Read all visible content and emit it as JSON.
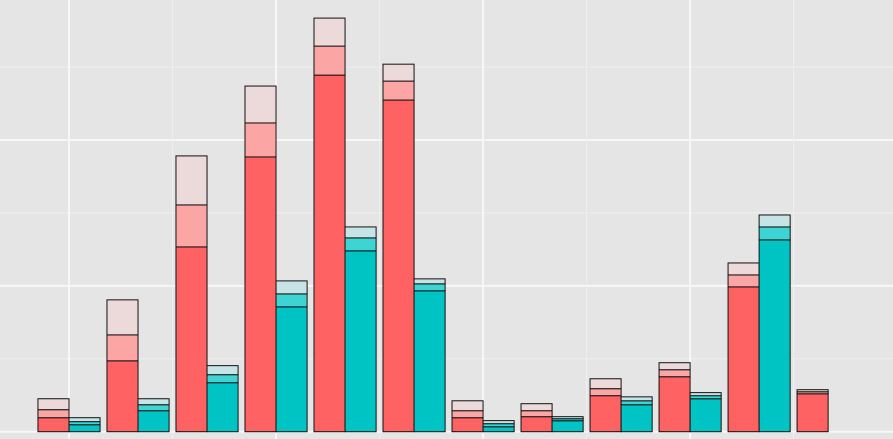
{
  "chart_data": {
    "type": "bar",
    "stacked": true,
    "grid": true,
    "x": [
      1,
      2,
      3,
      4,
      5,
      6,
      7,
      8,
      9,
      10,
      11,
      12
    ],
    "bar_width": 0.45,
    "xlim": [
      0,
      12.94
    ],
    "xticks": [
      1,
      2.5,
      4,
      5.5,
      7,
      8.5,
      10,
      11.5
    ],
    "ylim": [
      -0.5,
      29.6
    ],
    "yticks": [
      0,
      5,
      10,
      15,
      20,
      25
    ],
    "groups": [
      {
        "series": [
          {
            "color": "#fe6262",
            "values": [
              0.96,
              4.86,
              12.67,
              18.84,
              24.45,
              22.74,
              0.96,
              1.03,
              2.47,
              3.77,
              9.93,
              2.6
            ]
          },
          {
            "color": "#fba5a5",
            "values": [
              0.55,
              1.78,
              2.88,
              2.33,
              1.99,
              1.3,
              0.48,
              0.41,
              0.48,
              0.48,
              0.82,
              0.14
            ]
          },
          {
            "color": "#ecd9da",
            "values": [
              0.75,
              2.4,
              3.36,
              2.53,
              1.92,
              1.16,
              0.68,
              0.48,
              0.68,
              0.48,
              0.82,
              0.14
            ]
          }
        ]
      },
      {
        "series": [
          {
            "color": "#00c4c4",
            "values": [
              0.48,
              1.44,
              3.36,
              8.56,
              12.4,
              9.66,
              0.34,
              0.75,
              1.85,
              2.26,
              13.15,
              0
            ]
          },
          {
            "color": "#3fd4d4",
            "values": [
              0.21,
              0.41,
              0.55,
              0.89,
              0.89,
              0.48,
              0.21,
              0.14,
              0.27,
              0.21,
              0.89,
              0
            ]
          },
          {
            "color": "#c6e4e6",
            "values": [
              0.27,
              0.41,
              0.62,
              0.89,
              0.75,
              0.34,
              0.21,
              0.14,
              0.27,
              0.21,
              0.82,
              0
            ]
          }
        ]
      }
    ]
  }
}
